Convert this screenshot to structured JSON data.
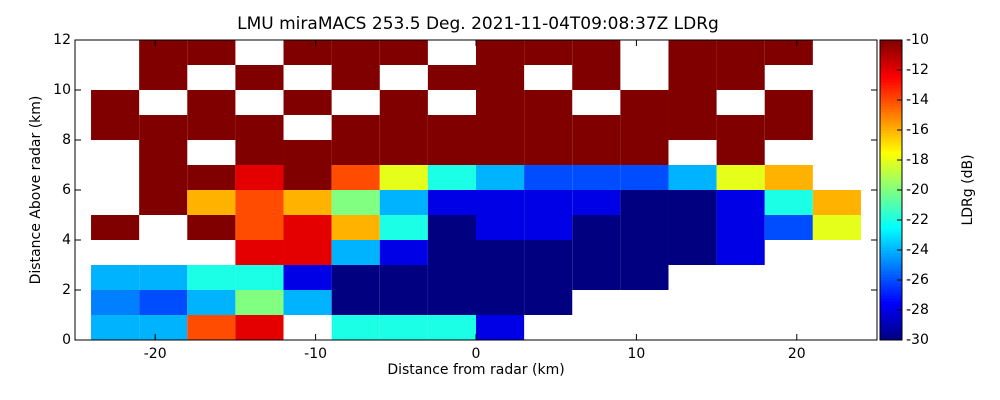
{
  "chart_data": {
    "type": "heatmap",
    "title": "LMU miraMACS 253.5 Deg. 2021-11-04T09:08:37Z  LDRg",
    "xlabel": "Distance from radar (km)",
    "ylabel": "Distance Above radar  (km)",
    "colorbar_label": "LDRg (dB)",
    "colormap": "jet",
    "xlim": [
      -25,
      25
    ],
    "ylim": [
      0,
      12
    ],
    "xticks": [
      -20,
      -10,
      0,
      10,
      20
    ],
    "yticks": [
      0,
      2,
      4,
      6,
      8,
      10,
      12
    ],
    "clim": [
      -30,
      -10
    ],
    "cticks": [
      -30,
      -28,
      -26,
      -24,
      -22,
      -20,
      -18,
      -16,
      -14,
      -12,
      -10
    ],
    "x_bins": [
      -24,
      -21,
      -18,
      -15,
      -12,
      -9,
      -6,
      -3,
      0,
      3,
      6,
      9,
      12,
      15,
      18,
      21,
      24
    ],
    "y_bins": [
      0,
      1,
      2,
      3,
      4,
      5,
      6,
      7,
      8,
      9,
      10,
      11,
      12
    ],
    "values": [
      [
        -24,
        -24,
        -14,
        -12,
        null,
        -22,
        -22,
        -22,
        -28,
        null,
        null,
        null,
        null,
        null,
        null,
        null
      ],
      [
        -25,
        -26,
        -24,
        -20,
        -24,
        -30,
        -30,
        -30,
        -30,
        -30,
        null,
        null,
        null,
        null,
        null,
        null
      ],
      [
        -24,
        -24,
        -22,
        -22,
        -28,
        -30,
        -30,
        -30,
        -30,
        -30,
        -30,
        -30,
        null,
        null,
        null,
        null
      ],
      [
        null,
        null,
        null,
        -12,
        -12,
        -24,
        -28,
        -30,
        -30,
        -30,
        -30,
        -30,
        -30,
        -28,
        null,
        null
      ],
      [
        -10,
        null,
        -10,
        -14,
        -12,
        -16,
        -22,
        -30,
        -28,
        -28,
        -30,
        -30,
        -30,
        -28,
        -26,
        -18
      ],
      [
        null,
        -10,
        -16,
        -14,
        -16,
        -20,
        -24,
        -28,
        -28,
        -28,
        -28,
        -30,
        -30,
        -28,
        -22,
        -16
      ],
      [
        null,
        -10,
        -10,
        -12,
        -10,
        -14,
        -18,
        -22,
        -24,
        -26,
        -26,
        -26,
        -24,
        -18,
        -16,
        null
      ],
      [
        null,
        -10,
        null,
        -10,
        -10,
        -10,
        -10,
        -10,
        -10,
        -10,
        -10,
        -10,
        null,
        -10,
        null,
        null
      ],
      [
        -10,
        -10,
        -10,
        -10,
        null,
        -10,
        -10,
        -10,
        -10,
        -10,
        -10,
        -10,
        -10,
        -10,
        -10,
        null
      ],
      [
        -10,
        null,
        -10,
        null,
        -10,
        null,
        -10,
        null,
        -10,
        -10,
        null,
        -10,
        -10,
        null,
        -10,
        null
      ],
      [
        null,
        -10,
        null,
        -10,
        null,
        -10,
        null,
        -10,
        -10,
        null,
        -10,
        null,
        -10,
        -10,
        null,
        null
      ],
      [
        null,
        -10,
        -10,
        null,
        -10,
        -10,
        -10,
        null,
        -10,
        -10,
        -10,
        null,
        -10,
        -10,
        -10,
        null
      ]
    ]
  }
}
